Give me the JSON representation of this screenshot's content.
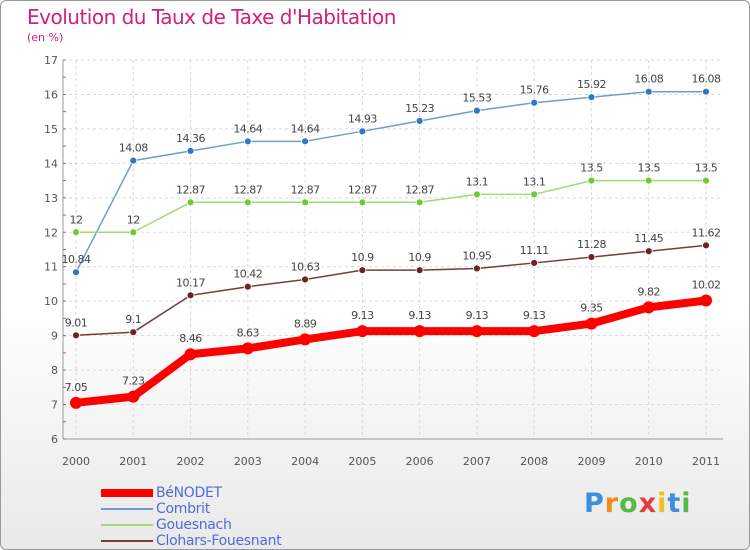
{
  "title": "Evolution du Taux de Taxe d'Habitation",
  "subtitle": "(en %)",
  "chart_data": {
    "type": "line",
    "x": [
      "2000",
      "2001",
      "2002",
      "2003",
      "2004",
      "2005",
      "2006",
      "2007",
      "2008",
      "2009",
      "2010",
      "2011"
    ],
    "ylim": [
      6,
      17
    ],
    "yticks": [
      "6",
      "7",
      "8",
      "9",
      "10",
      "11",
      "12",
      "13",
      "14",
      "15",
      "16",
      "17"
    ],
    "grid": true,
    "legend_position": "bottom-left",
    "series": [
      {
        "name": "Combrit",
        "color": "#6f9ccf",
        "marker_color": "#2e78c6",
        "values": [
          10.84,
          14.08,
          14.36,
          14.64,
          14.64,
          14.93,
          15.23,
          15.53,
          15.76,
          15.92,
          16.08,
          16.08
        ],
        "labels": [
          "10.84",
          "14.08",
          "14.36",
          "14.64",
          "14.64",
          "14.93",
          "15.23",
          "15.53",
          "15.76",
          "15.92",
          "16.08",
          "16.08"
        ]
      },
      {
        "name": "Gouesnach",
        "color": "#9fdc77",
        "marker_color": "#72c938",
        "values": [
          12,
          12,
          12.87,
          12.87,
          12.87,
          12.87,
          12.87,
          13.1,
          13.1,
          13.5,
          13.5,
          13.5
        ],
        "labels": [
          "12",
          "12",
          "12.87",
          "12.87",
          "12.87",
          "12.87",
          "12.87",
          "13.1",
          "13.1",
          "13.5",
          "13.5",
          "13.5"
        ]
      },
      {
        "name": "Clohars-Fouesnant",
        "color": "#7b3b3b",
        "marker_color": "#6a2424",
        "values": [
          9.01,
          9.1,
          10.17,
          10.42,
          10.63,
          10.9,
          10.9,
          10.95,
          11.11,
          11.28,
          11.45,
          11.62
        ],
        "labels": [
          "9.01",
          "9.1",
          "10.17",
          "10.42",
          "10.63",
          "10.9",
          "10.9",
          "10.95",
          "11.11",
          "11.28",
          "11.45",
          "11.62"
        ]
      },
      {
        "name": "BéNODET",
        "color": "#ff0000",
        "marker_color": "#ff0000",
        "values": [
          7.05,
          7.23,
          8.46,
          8.63,
          8.89,
          9.13,
          9.13,
          9.13,
          9.13,
          9.35,
          9.82,
          10.02
        ],
        "labels": [
          "7.05",
          "7.23",
          "8.46",
          "8.63",
          "8.89",
          "9.13",
          "9.13",
          "9.13",
          "9.13",
          "9.35",
          "9.82",
          "10.02"
        ]
      }
    ]
  },
  "legend": {
    "items": [
      {
        "name": "BéNODET",
        "color": "#ff0000",
        "thickness": 8
      },
      {
        "name": "Combrit",
        "color": "#6f9ccf",
        "thickness": 2
      },
      {
        "name": "Gouesnach",
        "color": "#9fdc77",
        "thickness": 2
      },
      {
        "name": "Clohars-Fouesnant",
        "color": "#7b3b3b",
        "thickness": 2
      }
    ]
  },
  "logo": {
    "letters": [
      "P",
      "r",
      "o",
      "x",
      "i",
      "t",
      "i"
    ],
    "colors": [
      "#3b8fe0",
      "#f08b1c",
      "#58b848",
      "#e23c3c",
      "#f0c020",
      "#3b8fe0",
      "#58b848"
    ]
  }
}
